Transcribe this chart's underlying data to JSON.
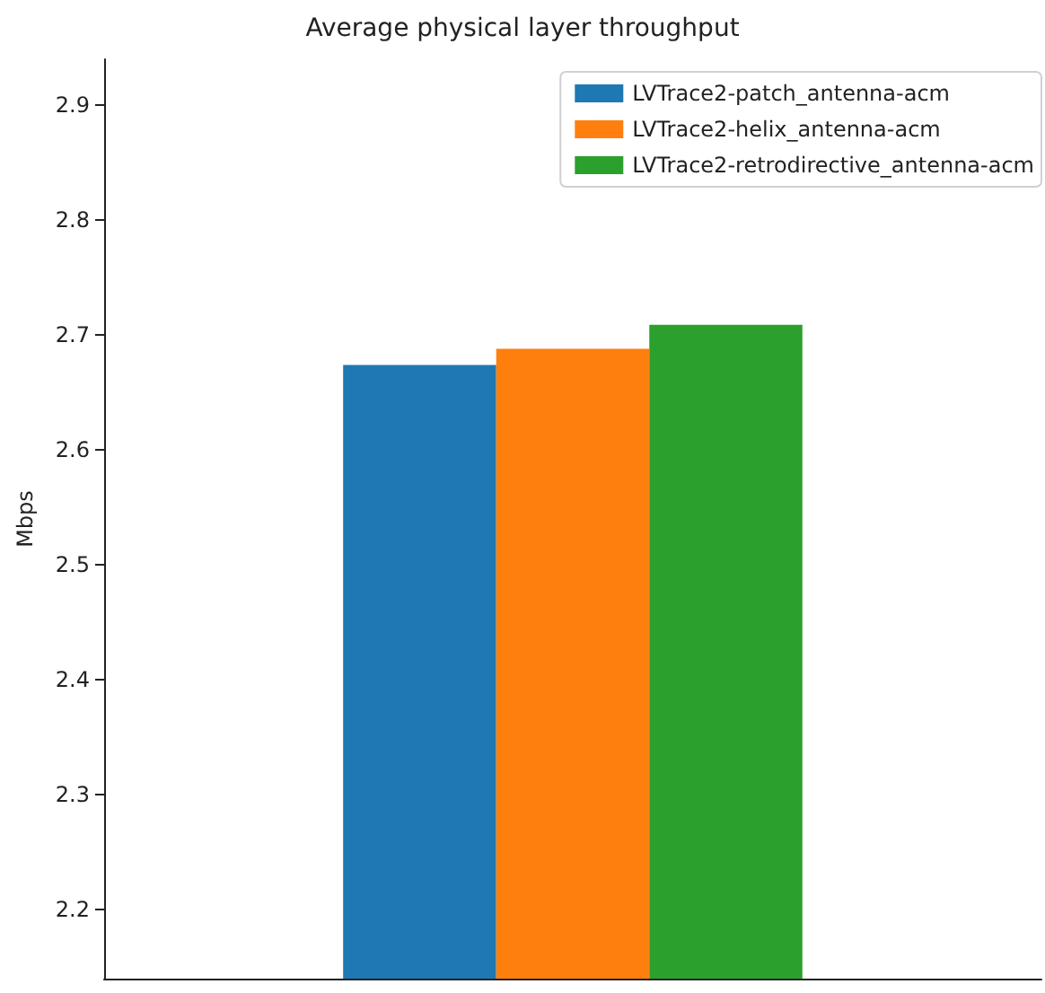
{
  "chart_data": {
    "type": "bar",
    "title": "Average physical layer throughput",
    "ylabel": "Mbps",
    "categories": [
      null
    ],
    "series": [
      {
        "name": "LVTrace2-patch_antenna-acm",
        "color": "#1f77b4",
        "values": [
          2.674
        ]
      },
      {
        "name": "LVTrace2-helix_antenna-acm",
        "color": "#ff7f0e",
        "values": [
          2.688
        ]
      },
      {
        "name": "LVTrace2-retrodirective_antenna-acm",
        "color": "#2ca02c",
        "values": [
          2.709
        ]
      }
    ],
    "ylim": [
      2.14,
      2.94
    ],
    "yticks": [
      2.2,
      2.3,
      2.4,
      2.5,
      2.6,
      2.7,
      2.8,
      2.9
    ],
    "grid": false,
    "legend": "top right"
  }
}
